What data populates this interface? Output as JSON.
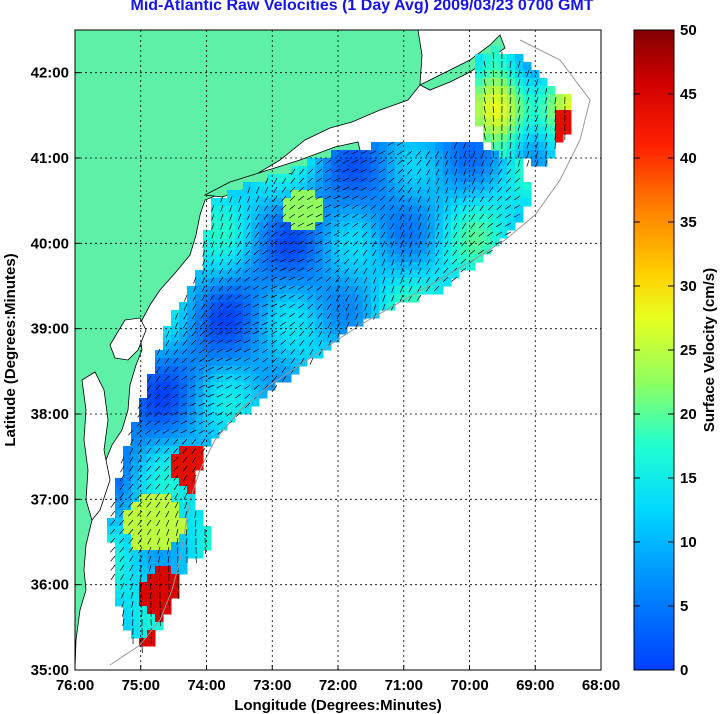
{
  "title": "Mid-Atlantic Raw Velocities (1 Day Avg) 2009/03/23 0700 GMT",
  "xlabel": "Longitude (Degrees:Minutes)",
  "ylabel": "Latitude (Degrees:Minutes)",
  "colorbar_label": "Surface Velocity (cm/s)",
  "x_ticks": [
    "76:00",
    "75:00",
    "74:00",
    "73:00",
    "72:00",
    "71:00",
    "70:00",
    "69:00",
    "68:00"
  ],
  "y_ticks": [
    "42:00",
    "41:00",
    "40:00",
    "39:00",
    "38:00",
    "37:00",
    "36:00",
    "35:00"
  ],
  "colorbar_ticks": [
    "50",
    "45",
    "40",
    "35",
    "30",
    "25",
    "20",
    "15",
    "10",
    "5",
    "0"
  ],
  "colors": {
    "land": "#5ff0a8",
    "ocean": "#ffffff",
    "title": "#1515e8",
    "arrow": "#000000",
    "bathymetry": "#999999",
    "grid": "#000000"
  },
  "chart_data": {
    "type": "heatmap",
    "title": "Mid-Atlantic Raw Velocities (1 Day Avg) 2009/03/23 0700 GMT",
    "xlabel": "Longitude (Degrees:Minutes)",
    "ylabel": "Latitude (Degrees:Minutes)",
    "xlim": [
      -76,
      -68
    ],
    "ylim": [
      35,
      42.5
    ],
    "colorbar": {
      "label": "Surface Velocity (cm/s)",
      "min": 0,
      "max": 50,
      "colormap": "jet"
    },
    "grid": true
  }
}
